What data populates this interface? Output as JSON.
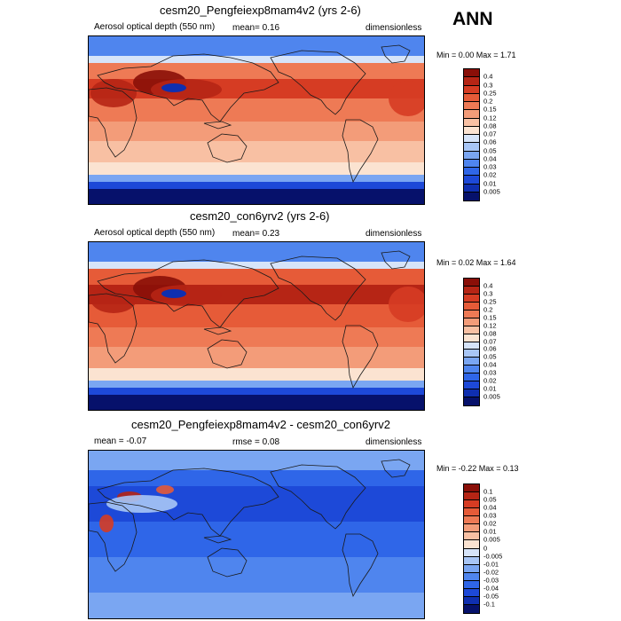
{
  "season": "ANN",
  "colors": {
    "abs": [
      "#06116b",
      "#0f2fb0",
      "#1d49d8",
      "#2f66e8",
      "#4f85ee",
      "#7aa6f2",
      "#a8c6f6",
      "#d6e4f9",
      "#fbe3d1",
      "#f8c0a3",
      "#f39c79",
      "#ee7a55",
      "#e65b38",
      "#d63c23",
      "#b62515",
      "#8a0f08"
    ],
    "diff": [
      "#06116b",
      "#0f2fb0",
      "#1d49d8",
      "#2f66e8",
      "#4f85ee",
      "#7aa6f2",
      "#a8c6f6",
      "#d6e4f9",
      "#fbe3d1",
      "#f8c0a3",
      "#f39c79",
      "#ee7a55",
      "#e65b38",
      "#d63c23",
      "#b62515",
      "#8a0f08"
    ],
    "coast": "#1a1a1a"
  },
  "panels": [
    {
      "title": "cesm20_Pengfeiexp8mam4v2 (yrs 2-6)",
      "left": "Aerosol optical depth (550 nm)",
      "mid": "mean=   0.16",
      "right": "dimensionless",
      "minmax": "Min =   0.00 Max =   1.71",
      "scale": "abs",
      "bias": 0.0,
      "levels": [
        "0.4",
        "0.3",
        "0.25",
        "0.2",
        "0.15",
        "0.12",
        "0.08",
        "0.07",
        "0.06",
        "0.05",
        "0.04",
        "0.03",
        "0.02",
        "0.01",
        "0.005"
      ]
    },
    {
      "title": "cesm20_con6yrv2 (yrs 2-6)",
      "left": "Aerosol optical depth (550 nm)",
      "mid": "mean=   0.23",
      "right": "dimensionless",
      "minmax": "Min =   0.02 Max =   1.64",
      "scale": "abs",
      "bias": 1.2,
      "levels": [
        "0.4",
        "0.3",
        "0.25",
        "0.2",
        "0.15",
        "0.12",
        "0.08",
        "0.07",
        "0.06",
        "0.05",
        "0.04",
        "0.03",
        "0.02",
        "0.01",
        "0.005"
      ]
    },
    {
      "title": "cesm20_Pengfeiexp8mam4v2 - cesm20_con6yrv2",
      "left": "mean =  -0.07",
      "mid": "rmse =   0.08",
      "right": "dimensionless",
      "minmax": "Min =  -0.22 Max =   0.13",
      "scale": "diff",
      "bias": 0.0,
      "levels": [
        "0.1",
        "0.05",
        "0.04",
        "0.03",
        "0.02",
        "0.01",
        "0.005",
        "0",
        "-0.005",
        "-0.01",
        "-0.02",
        "-0.03",
        "-0.04",
        "-0.05",
        "-0.1"
      ]
    }
  ]
}
